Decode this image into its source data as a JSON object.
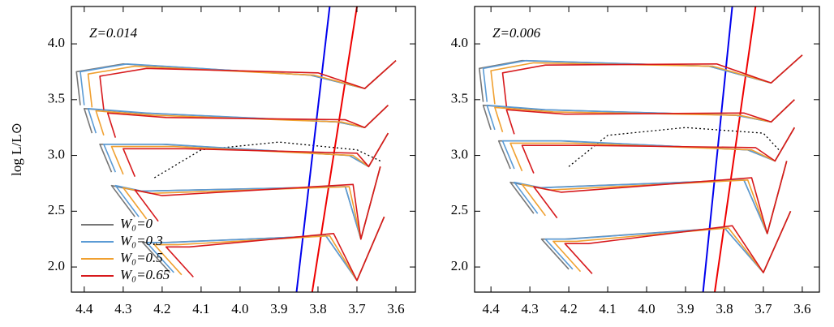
{
  "chart_data": [
    {
      "type": "line",
      "annotation": "Z=0.014",
      "ylabel": "log L/L⊙",
      "legend": "lower left",
      "xlim": [
        4.433,
        3.55
      ],
      "ylim": [
        1.775,
        4.335
      ],
      "xticks": [
        4.4,
        4.3,
        4.2,
        4.1,
        {
          "value": 4,
          "label": "4.0"
        },
        3.9,
        3.8,
        3.7,
        3.6
      ],
      "yticks": [
        {
          "value": 2,
          "label": "2.0"
        },
        2.5,
        {
          "value": 3,
          "label": "3.0"
        },
        3.5,
        {
          "value": 4,
          "label": "4.0"
        }
      ],
      "series": [
        {
          "name": "W₀=0",
          "color": "#777777",
          "x": [
            4.18,
            4.25,
            4.19,
            3.78,
            3.7,
            3.63,
            null,
            4.27,
            4.33,
            4.26,
            3.73,
            3.69,
            3.64,
            null,
            4.33,
            4.36,
            4.2,
            3.72,
            3.67,
            3.62,
            null,
            4.38,
            4.4,
            4.25,
            3.75,
            3.68,
            3.62,
            null,
            4.41,
            4.42,
            4.3,
            3.82,
            3.68,
            3.6
          ],
          "y": [
            1.95,
            2.22,
            2.22,
            2.28,
            1.88,
            2.45,
            null,
            2.45,
            2.73,
            2.68,
            2.72,
            2.25,
            2.9,
            null,
            2.85,
            3.1,
            3.1,
            3.0,
            2.9,
            3.2,
            null,
            3.2,
            3.42,
            3.38,
            3.3,
            3.25,
            3.45,
            null,
            3.45,
            3.75,
            3.82,
            3.72,
            3.6,
            3.85
          ]
        },
        {
          "name": "W₀=0.3",
          "color": "#5b9bd5",
          "x": [
            4.17,
            4.24,
            4.18,
            3.78,
            3.7,
            3.63,
            null,
            4.26,
            4.32,
            4.25,
            3.73,
            3.69,
            3.64,
            null,
            4.32,
            4.35,
            4.19,
            3.72,
            3.67,
            3.62,
            null,
            4.37,
            4.39,
            4.24,
            3.75,
            3.68,
            3.62,
            null,
            4.4,
            4.41,
            4.29,
            3.82,
            3.68,
            3.6
          ],
          "y": [
            1.95,
            2.22,
            2.22,
            2.28,
            1.88,
            2.45,
            null,
            2.45,
            2.73,
            2.68,
            2.72,
            2.25,
            2.9,
            null,
            2.85,
            3.1,
            3.1,
            3.0,
            2.9,
            3.2,
            null,
            3.2,
            3.42,
            3.38,
            3.3,
            3.25,
            3.45,
            null,
            3.45,
            3.75,
            3.82,
            3.72,
            3.6,
            3.85
          ]
        },
        {
          "name": "W₀=0.5",
          "color": "#f0a030",
          "x": [
            4.15,
            4.22,
            4.16,
            3.77,
            3.7,
            3.63,
            null,
            4.24,
            4.3,
            4.23,
            3.72,
            3.69,
            3.64,
            null,
            4.3,
            4.33,
            4.17,
            3.71,
            3.67,
            3.62,
            null,
            4.35,
            4.37,
            4.22,
            3.74,
            3.68,
            3.62,
            null,
            4.38,
            4.39,
            4.27,
            3.81,
            3.68,
            3.6
          ],
          "y": [
            1.93,
            2.2,
            2.2,
            2.28,
            1.88,
            2.45,
            null,
            2.43,
            2.71,
            2.66,
            2.72,
            2.25,
            2.9,
            null,
            2.83,
            3.08,
            3.08,
            3.0,
            2.9,
            3.2,
            null,
            3.18,
            3.4,
            3.36,
            3.3,
            3.25,
            3.45,
            null,
            3.43,
            3.73,
            3.8,
            3.72,
            3.6,
            3.85
          ]
        },
        {
          "name": "W₀=0.65",
          "color": "#d7191c",
          "x": [
            4.12,
            4.19,
            4.13,
            3.76,
            3.7,
            3.63,
            null,
            4.21,
            4.27,
            4.2,
            3.71,
            3.69,
            3.64,
            null,
            4.27,
            4.3,
            4.14,
            3.7,
            3.67,
            3.62,
            null,
            4.32,
            4.34,
            4.19,
            3.73,
            3.68,
            3.62,
            null,
            4.35,
            4.36,
            4.24,
            3.8,
            3.68,
            3.6
          ],
          "y": [
            1.91,
            2.18,
            2.18,
            2.3,
            1.88,
            2.45,
            null,
            2.41,
            2.69,
            2.64,
            2.74,
            2.25,
            2.9,
            null,
            2.81,
            3.06,
            3.06,
            3.02,
            2.9,
            3.2,
            null,
            3.16,
            3.38,
            3.34,
            3.32,
            3.25,
            3.45,
            null,
            3.41,
            3.71,
            3.78,
            3.74,
            3.6,
            3.85
          ]
        }
      ],
      "reference_lines": [
        {
          "color": "#000000",
          "style": "dotted",
          "x": [
            4.22,
            4.1,
            3.9,
            3.7,
            3.64
          ],
          "y": [
            2.8,
            3.05,
            3.12,
            3.05,
            2.95
          ]
        },
        {
          "color": "#0000ee",
          "style": "solid",
          "x": [
            3.855,
            3.77
          ],
          "y": [
            1.775,
            4.335
          ]
        },
        {
          "color": "#ee0000",
          "style": "solid",
          "x": [
            3.815,
            3.7
          ],
          "y": [
            1.775,
            4.335
          ]
        }
      ]
    },
    {
      "type": "line",
      "annotation": "Z=0.006",
      "xlim": [
        4.442,
        3.556
      ],
      "ylim": [
        1.775,
        4.335
      ],
      "xticks": [
        4.4,
        4.3,
        4.2,
        4.1,
        {
          "value": 4,
          "label": "4.0"
        },
        3.9,
        3.8,
        3.7,
        3.6
      ],
      "yticks": [
        {
          "value": 2,
          "label": "2.0"
        },
        2.5,
        {
          "value": 3,
          "label": "3.0"
        },
        3.5,
        {
          "value": 4,
          "label": "4.0"
        }
      ],
      "series": [
        {
          "color": "#777777",
          "x": [
            4.2,
            4.27,
            4.21,
            3.8,
            3.7,
            3.63,
            null,
            4.29,
            4.35,
            4.28,
            3.75,
            3.69,
            3.64,
            null,
            4.35,
            4.38,
            4.22,
            3.74,
            3.67,
            3.62,
            null,
            4.4,
            4.42,
            4.27,
            3.77,
            3.68,
            3.62,
            null,
            4.42,
            4.43,
            4.32,
            3.84,
            3.68,
            3.6
          ],
          "y": [
            1.98,
            2.25,
            2.25,
            2.35,
            1.95,
            2.5,
            null,
            2.48,
            2.76,
            2.71,
            2.78,
            2.3,
            2.95,
            null,
            2.88,
            3.13,
            3.13,
            3.05,
            2.95,
            3.25,
            null,
            3.23,
            3.45,
            3.41,
            3.36,
            3.3,
            3.5,
            null,
            3.48,
            3.78,
            3.85,
            3.8,
            3.65,
            3.9
          ]
        },
        {
          "color": "#5b9bd5",
          "x": [
            4.19,
            4.26,
            4.2,
            3.8,
            3.7,
            3.63,
            null,
            4.28,
            4.34,
            4.27,
            3.75,
            3.69,
            3.64,
            null,
            4.34,
            4.37,
            4.21,
            3.74,
            3.67,
            3.62,
            null,
            4.39,
            4.41,
            4.26,
            3.77,
            3.68,
            3.62,
            null,
            4.41,
            4.42,
            4.31,
            3.84,
            3.68,
            3.6
          ],
          "y": [
            1.98,
            2.25,
            2.25,
            2.35,
            1.95,
            2.5,
            null,
            2.48,
            2.76,
            2.71,
            2.78,
            2.3,
            2.95,
            null,
            2.88,
            3.13,
            3.13,
            3.05,
            2.95,
            3.25,
            null,
            3.23,
            3.45,
            3.41,
            3.36,
            3.3,
            3.5,
            null,
            3.48,
            3.78,
            3.85,
            3.8,
            3.65,
            3.9
          ]
        },
        {
          "color": "#f0a030",
          "x": [
            4.17,
            4.24,
            4.18,
            3.79,
            3.7,
            3.63,
            null,
            4.26,
            4.32,
            4.25,
            3.74,
            3.69,
            3.64,
            null,
            4.32,
            4.35,
            4.19,
            3.73,
            3.67,
            3.62,
            null,
            4.37,
            4.39,
            4.24,
            3.76,
            3.68,
            3.62,
            null,
            4.39,
            4.4,
            4.29,
            3.83,
            3.68,
            3.6
          ],
          "y": [
            1.96,
            2.23,
            2.23,
            2.35,
            1.95,
            2.5,
            null,
            2.46,
            2.74,
            2.69,
            2.78,
            2.3,
            2.95,
            null,
            2.86,
            3.11,
            3.11,
            3.05,
            2.95,
            3.25,
            null,
            3.21,
            3.43,
            3.39,
            3.36,
            3.3,
            3.5,
            null,
            3.46,
            3.76,
            3.83,
            3.8,
            3.65,
            3.9
          ]
        },
        {
          "color": "#d7191c",
          "x": [
            4.14,
            4.21,
            4.15,
            3.78,
            3.7,
            3.63,
            null,
            4.23,
            4.29,
            4.22,
            3.73,
            3.69,
            3.64,
            null,
            4.29,
            4.32,
            4.16,
            3.72,
            3.67,
            3.62,
            null,
            4.34,
            4.36,
            4.21,
            3.75,
            3.68,
            3.62,
            null,
            4.36,
            4.37,
            4.26,
            3.82,
            3.68,
            3.6
          ],
          "y": [
            1.94,
            2.21,
            2.21,
            2.37,
            1.95,
            2.5,
            null,
            2.44,
            2.72,
            2.67,
            2.8,
            2.3,
            2.95,
            null,
            2.84,
            3.09,
            3.09,
            3.07,
            2.95,
            3.25,
            null,
            3.19,
            3.41,
            3.37,
            3.38,
            3.3,
            3.5,
            null,
            3.44,
            3.74,
            3.81,
            3.82,
            3.65,
            3.9
          ]
        }
      ],
      "reference_lines": [
        {
          "color": "#000000",
          "style": "dotted",
          "x": [
            4.2,
            4.1,
            3.9,
            3.7,
            3.66
          ],
          "y": [
            2.9,
            3.18,
            3.25,
            3.2,
            3.05
          ]
        },
        {
          "color": "#0000ee",
          "style": "solid",
          "x": [
            3.855,
            3.78
          ],
          "y": [
            1.775,
            4.335
          ]
        },
        {
          "color": "#ee0000",
          "style": "solid",
          "x": [
            3.825,
            3.72
          ],
          "y": [
            1.775,
            4.335
          ]
        }
      ]
    }
  ]
}
